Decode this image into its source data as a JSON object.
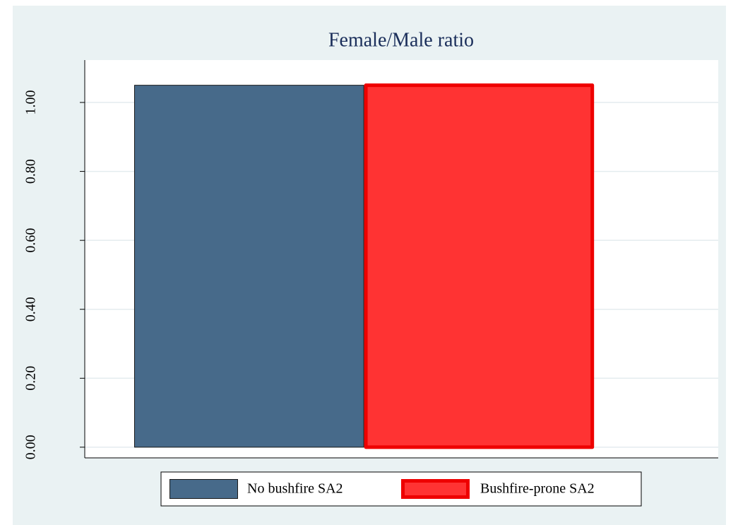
{
  "chart_data": {
    "type": "bar",
    "title": "Female/Male ratio",
    "categories": [
      null
    ],
    "series": [
      {
        "name": "No bushfire SA2",
        "color": "#476a8a",
        "values": [
          1.05
        ]
      },
      {
        "name": "Bushfire-prone SA2",
        "color": "#ff3333",
        "values": [
          1.05
        ]
      }
    ],
    "ylim": [
      -0.031,
      1.123
    ],
    "yticks": [
      {
        "value": 0,
        "label": "0.00"
      },
      {
        "value": 0.2,
        "label": "0.20"
      },
      {
        "value": 0.4,
        "label": "0.40"
      },
      {
        "value": 0.6,
        "label": "0.60"
      },
      {
        "value": 0.8,
        "label": "0.80"
      },
      {
        "value": 1,
        "label": "1.00"
      }
    ],
    "grid": true
  }
}
